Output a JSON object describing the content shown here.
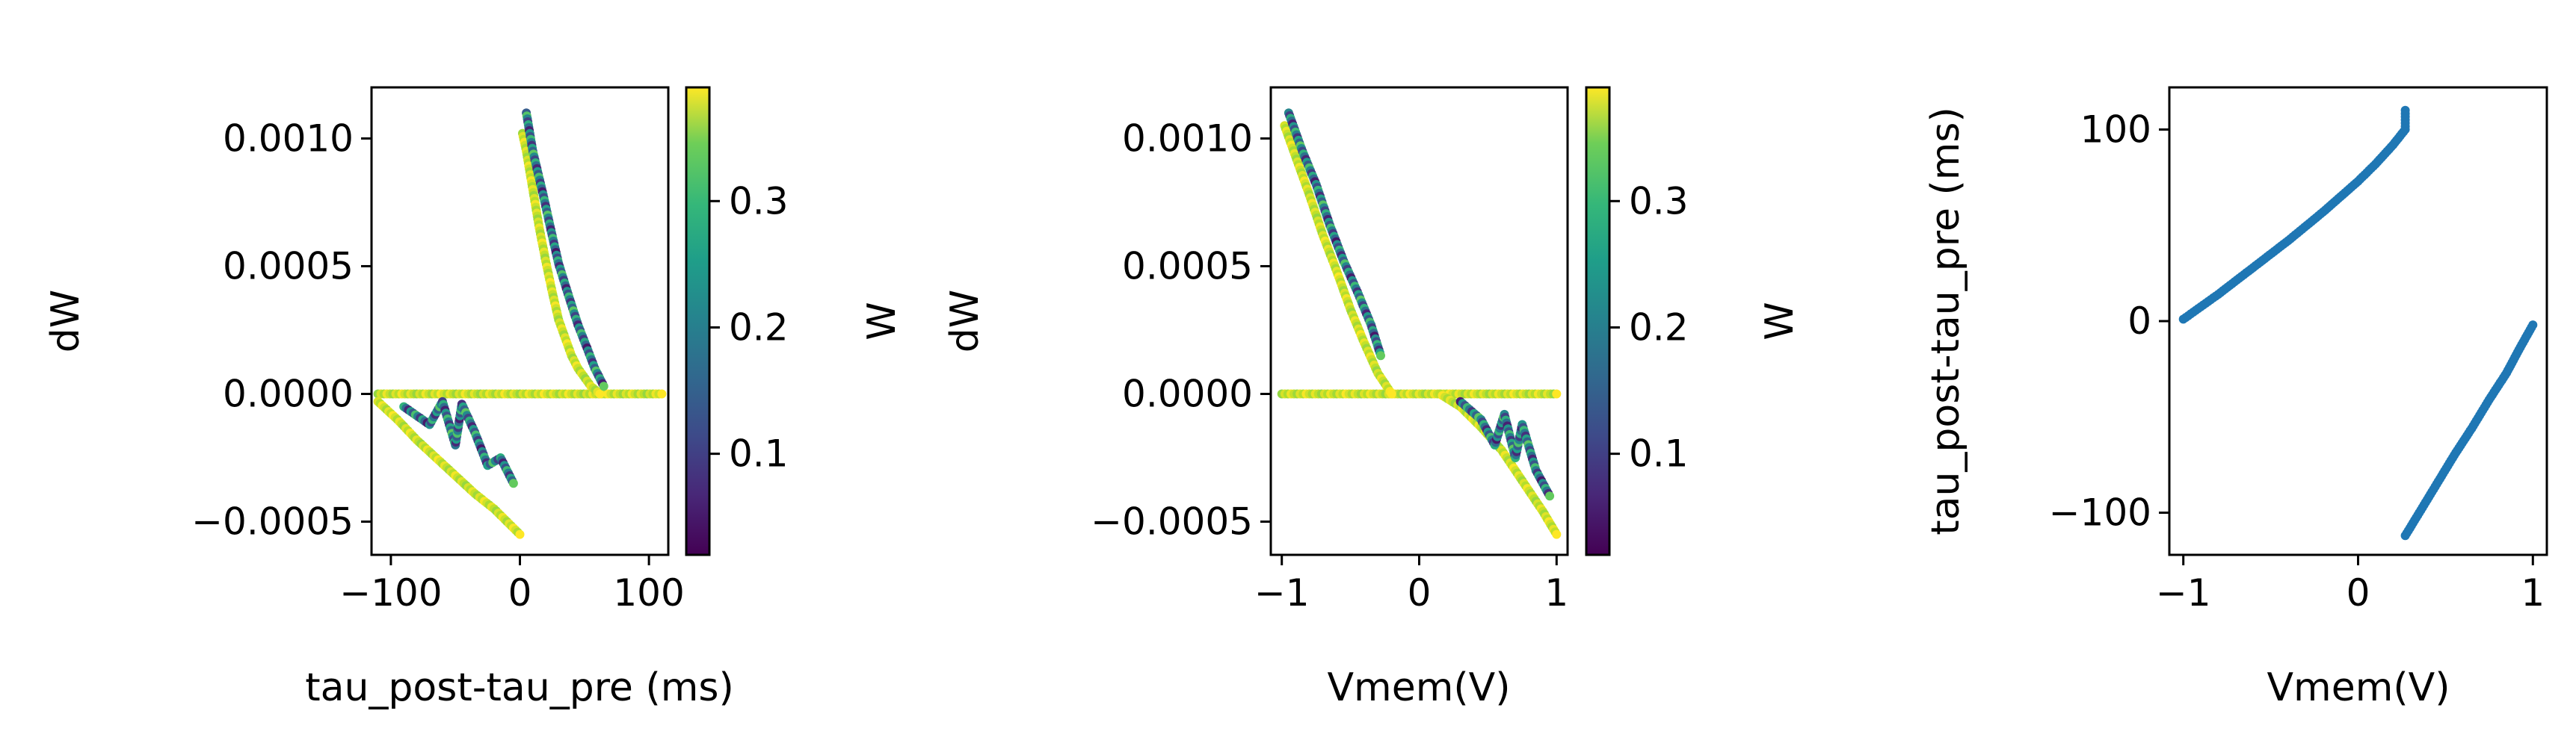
{
  "chart_data": [
    {
      "type": "scatter",
      "xlabel": "tau_post-tau_pre (ms)",
      "ylabel": "dW",
      "xlim": [
        -115,
        115
      ],
      "ylim": [
        -0.00063,
        0.0012
      ],
      "xticks": [
        -100,
        0,
        100
      ],
      "xtick_labels": [
        "−100",
        "0",
        "100"
      ],
      "yticks": [
        -0.0005,
        0.0,
        0.0005,
        0.001
      ],
      "ytick_labels": [
        "−0.0005",
        "0.0000",
        "0.0005",
        "0.0010"
      ],
      "grid": false,
      "colorbar": {
        "label": "W",
        "colormap": "viridis",
        "range": [
          0.02,
          0.39
        ],
        "ticks": [
          0.1,
          0.2,
          0.3
        ],
        "tick_labels": [
          "0.1",
          "0.2",
          "0.3"
        ]
      },
      "series": [
        {
          "points": [
            [
              -110,
              0.0
            ],
            [
              -80,
              0.0
            ],
            [
              -40,
              0.0
            ],
            [
              0,
              0.0
            ],
            [
              40,
              0.0
            ],
            [
              80,
              0.0
            ],
            [
              110,
              0.0
            ]
          ],
          "w_range": [
            0.33,
            0.39
          ]
        },
        {
          "points": [
            [
              2,
              0.00102
            ],
            [
              5,
              0.00095
            ],
            [
              10,
              0.0008
            ],
            [
              15,
              0.00065
            ],
            [
              20,
              0.00052
            ],
            [
              25,
              0.0004
            ],
            [
              30,
              0.00029
            ],
            [
              35,
              0.00022
            ],
            [
              40,
              0.00015
            ],
            [
              45,
              0.0001
            ],
            [
              55,
              3e-05
            ],
            [
              62,
              0.0
            ]
          ],
          "w_range": [
            0.33,
            0.39
          ]
        },
        {
          "points": [
            [
              5,
              0.0011
            ],
            [
              10,
              0.00095
            ],
            [
              18,
              0.00078
            ],
            [
              25,
              0.00062
            ],
            [
              30,
              0.00051
            ],
            [
              38,
              0.00038
            ],
            [
              45,
              0.00027
            ],
            [
              52,
              0.00018
            ],
            [
              58,
              0.0001
            ],
            [
              65,
              3e-05
            ]
          ],
          "w_range": [
            0.04,
            0.3
          ]
        },
        {
          "points": [
            [
              -110,
              -3e-05
            ],
            [
              -95,
              -0.0001
            ],
            [
              -80,
              -0.00018
            ],
            [
              -65,
              -0.00025
            ],
            [
              -50,
              -0.00032
            ],
            [
              -35,
              -0.00039
            ],
            [
              -20,
              -0.00045
            ],
            [
              -10,
              -0.0005
            ],
            [
              0,
              -0.00055
            ]
          ],
          "w_range": [
            0.33,
            0.39
          ]
        },
        {
          "points": [
            [
              -90,
              -5e-05
            ],
            [
              -70,
              -0.00012
            ],
            [
              -60,
              -3e-05
            ],
            [
              -50,
              -0.0002
            ],
            [
              -45,
              -4e-05
            ],
            [
              -35,
              -0.00015
            ],
            [
              -25,
              -0.00028
            ],
            [
              -15,
              -0.00025
            ],
            [
              -5,
              -0.00035
            ]
          ],
          "w_range": [
            0.04,
            0.3
          ]
        }
      ]
    },
    {
      "type": "scatter",
      "xlabel": "Vmem(V)",
      "ylabel": "dW",
      "xlim": [
        -1.08,
        1.08
      ],
      "ylim": [
        -0.00063,
        0.0012
      ],
      "xticks": [
        -1,
        0,
        1
      ],
      "xtick_labels": [
        "−1",
        "0",
        "1"
      ],
      "yticks": [
        -0.0005,
        0.0,
        0.0005,
        0.001
      ],
      "ytick_labels": [
        "−0.0005",
        "0.0000",
        "0.0005",
        "0.0010"
      ],
      "grid": false,
      "colorbar": {
        "label": "W",
        "colormap": "viridis",
        "range": [
          0.02,
          0.39
        ],
        "ticks": [
          0.1,
          0.2,
          0.3
        ],
        "tick_labels": [
          "0.1",
          "0.2",
          "0.3"
        ]
      },
      "series": [
        {
          "points": [
            [
              -1.0,
              0.0
            ],
            [
              -0.6,
              0.0
            ],
            [
              -0.2,
              0.0
            ],
            [
              0.2,
              0.0
            ],
            [
              0.6,
              0.0
            ],
            [
              1.0,
              0.0
            ]
          ],
          "w_range": [
            0.33,
            0.39
          ]
        },
        {
          "points": [
            [
              -0.98,
              0.00105
            ],
            [
              -0.9,
              0.00093
            ],
            [
              -0.8,
              0.00078
            ],
            [
              -0.7,
              0.00062
            ],
            [
              -0.6,
              0.00048
            ],
            [
              -0.5,
              0.00033
            ],
            [
              -0.4,
              0.0002
            ],
            [
              -0.3,
              8e-05
            ],
            [
              -0.2,
              0.0
            ]
          ],
          "w_range": [
            0.33,
            0.39
          ]
        },
        {
          "points": [
            [
              -0.95,
              0.0011
            ],
            [
              -0.85,
              0.00095
            ],
            [
              -0.75,
              0.00082
            ],
            [
              -0.65,
              0.00066
            ],
            [
              -0.55,
              0.00052
            ],
            [
              -0.45,
              0.0004
            ],
            [
              -0.35,
              0.00027
            ],
            [
              -0.28,
              0.00015
            ]
          ],
          "w_range": [
            0.04,
            0.3
          ]
        },
        {
          "points": [
            [
              0.15,
              0.0
            ],
            [
              0.3,
              -5e-05
            ],
            [
              0.45,
              -0.00013
            ],
            [
              0.6,
              -0.00022
            ],
            [
              0.7,
              -0.0003
            ],
            [
              0.8,
              -0.00038
            ],
            [
              0.9,
              -0.00046
            ],
            [
              1.0,
              -0.00055
            ]
          ],
          "w_range": [
            0.33,
            0.39
          ]
        },
        {
          "points": [
            [
              0.3,
              -3e-05
            ],
            [
              0.45,
              -0.0001
            ],
            [
              0.55,
              -0.0002
            ],
            [
              0.62,
              -8e-05
            ],
            [
              0.7,
              -0.00025
            ],
            [
              0.75,
              -0.00012
            ],
            [
              0.85,
              -0.0003
            ],
            [
              0.95,
              -0.0004
            ]
          ],
          "w_range": [
            0.04,
            0.3
          ]
        }
      ]
    },
    {
      "type": "scatter",
      "xlabel": "Vmem(V)",
      "ylabel": "tau_post-tau_pre (ms)",
      "xlim": [
        -1.08,
        1.08
      ],
      "ylim": [
        -122,
        122
      ],
      "xticks": [
        -1,
        0,
        1
      ],
      "xtick_labels": [
        "−1",
        "0",
        "1"
      ],
      "yticks": [
        -100,
        0,
        100
      ],
      "ytick_labels": [
        "−100",
        "0",
        "100"
      ],
      "grid": false,
      "color": "#1f77b4",
      "series": [
        {
          "points": [
            [
              -1.0,
              1
            ],
            [
              -0.8,
              14
            ],
            [
              -0.6,
              28
            ],
            [
              -0.4,
              42
            ],
            [
              -0.2,
              57
            ],
            [
              0.0,
              73
            ],
            [
              0.1,
              82
            ],
            [
              0.2,
              92
            ],
            [
              0.27,
              100
            ],
            [
              0.27,
              110
            ]
          ]
        },
        {
          "points": [
            [
              0.27,
              -112
            ],
            [
              0.35,
              -100
            ],
            [
              0.45,
              -85
            ],
            [
              0.55,
              -70
            ],
            [
              0.65,
              -56
            ],
            [
              0.75,
              -41
            ],
            [
              0.85,
              -27
            ],
            [
              0.92,
              -15
            ],
            [
              1.0,
              -2
            ]
          ]
        }
      ]
    }
  ]
}
